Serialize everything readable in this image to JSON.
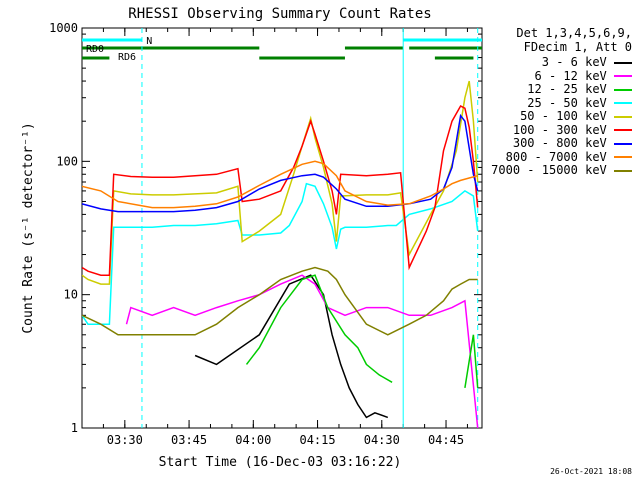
{
  "chart_data": {
    "type": "line",
    "title": "RHESSI Observing Summary Count Rates",
    "xlabel": "Start Time (16-Dec-03 03:16:22)",
    "ylabel": "Count Rate (s⁻¹ detector⁻¹)",
    "yscale": "log",
    "ylim": [
      1,
      1000
    ],
    "xlim_minutes": [
      3.6,
      97.0
    ],
    "x_ticks": [
      "03:30",
      "03:45",
      "04:00",
      "04:15",
      "04:30",
      "04:45"
    ],
    "x_ticks_minutes": [
      13.6,
      28.6,
      43.6,
      58.6,
      73.6,
      88.6
    ],
    "y_ticks": [
      "1",
      "10",
      "100",
      "1000"
    ],
    "y_tick_values": [
      1,
      10,
      100,
      1000
    ],
    "legend_header": [
      "Det 1,3,4,5,6,9,",
      "FDecim 1, Att 0"
    ],
    "legend_position": "right",
    "annotations": {
      "RD0": "RD0",
      "RD6": "RD6",
      "N": "N"
    },
    "series": [
      {
        "name": "3 - 6 keV",
        "color": "#000000",
        "x": [
          3.6,
          23,
          30,
          35,
          45,
          52,
          57,
          60,
          62,
          64,
          66,
          68,
          70,
          72,
          75,
          80,
          85,
          95
        ],
        "y": [
          null,
          null,
          3.5,
          3,
          5,
          12,
          14,
          10,
          5,
          3,
          2,
          1.5,
          1.2,
          1.3,
          1.2,
          null,
          null,
          null
        ]
      },
      {
        "name": "6 - 12 keV",
        "color": "#ff00ff",
        "x": [
          3.6,
          10,
          14,
          15,
          20,
          25,
          30,
          35,
          40,
          45,
          50,
          55,
          58,
          61,
          65,
          70,
          75,
          80,
          85,
          90,
          93,
          96
        ],
        "y": [
          null,
          null,
          6,
          8,
          7,
          8,
          7,
          8,
          9,
          10,
          12,
          14,
          12,
          8,
          7,
          8,
          8,
          7,
          7,
          8,
          9,
          1
        ]
      },
      {
        "name": "12 - 25 keV",
        "color": "#00cc00",
        "x": [
          3.6,
          40,
          42,
          45,
          50,
          55,
          58,
          61,
          65,
          68,
          70,
          73,
          76,
          80,
          90,
          93,
          95,
          96
        ],
        "y": [
          null,
          null,
          3,
          4,
          8,
          13,
          14,
          8,
          5,
          4,
          3,
          2.5,
          2.2,
          null,
          null,
          2,
          5,
          2
        ]
      },
      {
        "name": "25 - 50 keV",
        "color": "#00ffff",
        "x": [
          3.6,
          5,
          8,
          10,
          11,
          15,
          20,
          25,
          30,
          35,
          40,
          41,
          45,
          50,
          52,
          55,
          56,
          58,
          60,
          62,
          63,
          64,
          65,
          70,
          75,
          77,
          80,
          85,
          90,
          93,
          95,
          96
        ],
        "y": [
          7,
          6,
          6,
          6,
          32,
          32,
          32,
          33,
          33,
          34,
          36,
          28,
          28,
          29,
          33,
          50,
          68,
          65,
          48,
          32,
          22,
          31,
          32,
          32,
          33,
          33,
          40,
          44,
          50,
          60,
          55,
          30
        ]
      },
      {
        "name": "50 - 100 keV",
        "color": "#cccc00",
        "x": [
          3.6,
          5,
          8,
          10,
          11,
          15,
          20,
          25,
          30,
          35,
          40,
          41,
          45,
          50,
          53,
          55,
          57,
          58,
          60,
          62,
          63,
          64,
          70,
          75,
          78,
          80,
          85,
          88,
          91,
          93,
          94,
          95,
          96
        ],
        "y": [
          14,
          13,
          12,
          12,
          60,
          57,
          56,
          56,
          57,
          58,
          65,
          25,
          30,
          40,
          80,
          130,
          210,
          150,
          90,
          48,
          25,
          55,
          56,
          56,
          58,
          20,
          40,
          60,
          120,
          300,
          400,
          200,
          70
        ]
      },
      {
        "name": "100 - 300 keV",
        "color": "#ff0000",
        "x": [
          3.6,
          5,
          8,
          10,
          11,
          15,
          20,
          25,
          30,
          35,
          40,
          41,
          45,
          50,
          53,
          55,
          57,
          58,
          60,
          62,
          63,
          64,
          70,
          75,
          78,
          80,
          84,
          86,
          88,
          90,
          92,
          93,
          94,
          95,
          96
        ],
        "y": [
          16,
          15,
          14,
          14,
          80,
          77,
          76,
          76,
          78,
          80,
          88,
          50,
          52,
          60,
          90,
          130,
          200,
          160,
          100,
          60,
          40,
          80,
          78,
          80,
          82,
          16,
          30,
          45,
          120,
          200,
          260,
          250,
          180,
          100,
          45
        ]
      },
      {
        "name": "300 - 800 keV",
        "color": "#0000ff",
        "x": [
          3.6,
          8,
          12,
          20,
          25,
          30,
          35,
          40,
          45,
          50,
          55,
          58,
          60,
          63,
          65,
          70,
          75,
          80,
          85,
          88,
          90,
          92,
          93,
          95,
          96
        ],
        "y": [
          48,
          44,
          42,
          42,
          42,
          43,
          45,
          50,
          62,
          72,
          78,
          80,
          76,
          62,
          52,
          46,
          46,
          48,
          52,
          62,
          90,
          220,
          200,
          80,
          60
        ]
      },
      {
        "name": "800 - 7000 keV",
        "color": "#ff8000",
        "x": [
          3.6,
          8,
          12,
          20,
          25,
          30,
          35,
          40,
          45,
          50,
          55,
          58,
          60,
          63,
          65,
          70,
          75,
          80,
          85,
          88,
          90,
          92,
          94,
          96
        ],
        "y": [
          65,
          60,
          50,
          45,
          45,
          46,
          48,
          54,
          66,
          80,
          95,
          100,
          96,
          78,
          60,
          50,
          47,
          48,
          55,
          62,
          68,
          72,
          75,
          78
        ]
      },
      {
        "name": "7000 - 15000 keV",
        "color": "#808000",
        "x": [
          3.6,
          8,
          12,
          20,
          25,
          30,
          35,
          40,
          45,
          50,
          55,
          58,
          61,
          63,
          65,
          70,
          75,
          80,
          84,
          88,
          90,
          92,
          94,
          96
        ],
        "y": [
          7,
          6,
          5,
          5,
          5,
          5,
          6,
          8,
          10,
          13,
          15,
          16,
          15,
          13,
          10,
          6,
          5,
          6,
          7,
          9,
          11,
          12,
          13,
          13
        ]
      }
    ]
  },
  "stamp": "26-Oct-2021 18:08"
}
